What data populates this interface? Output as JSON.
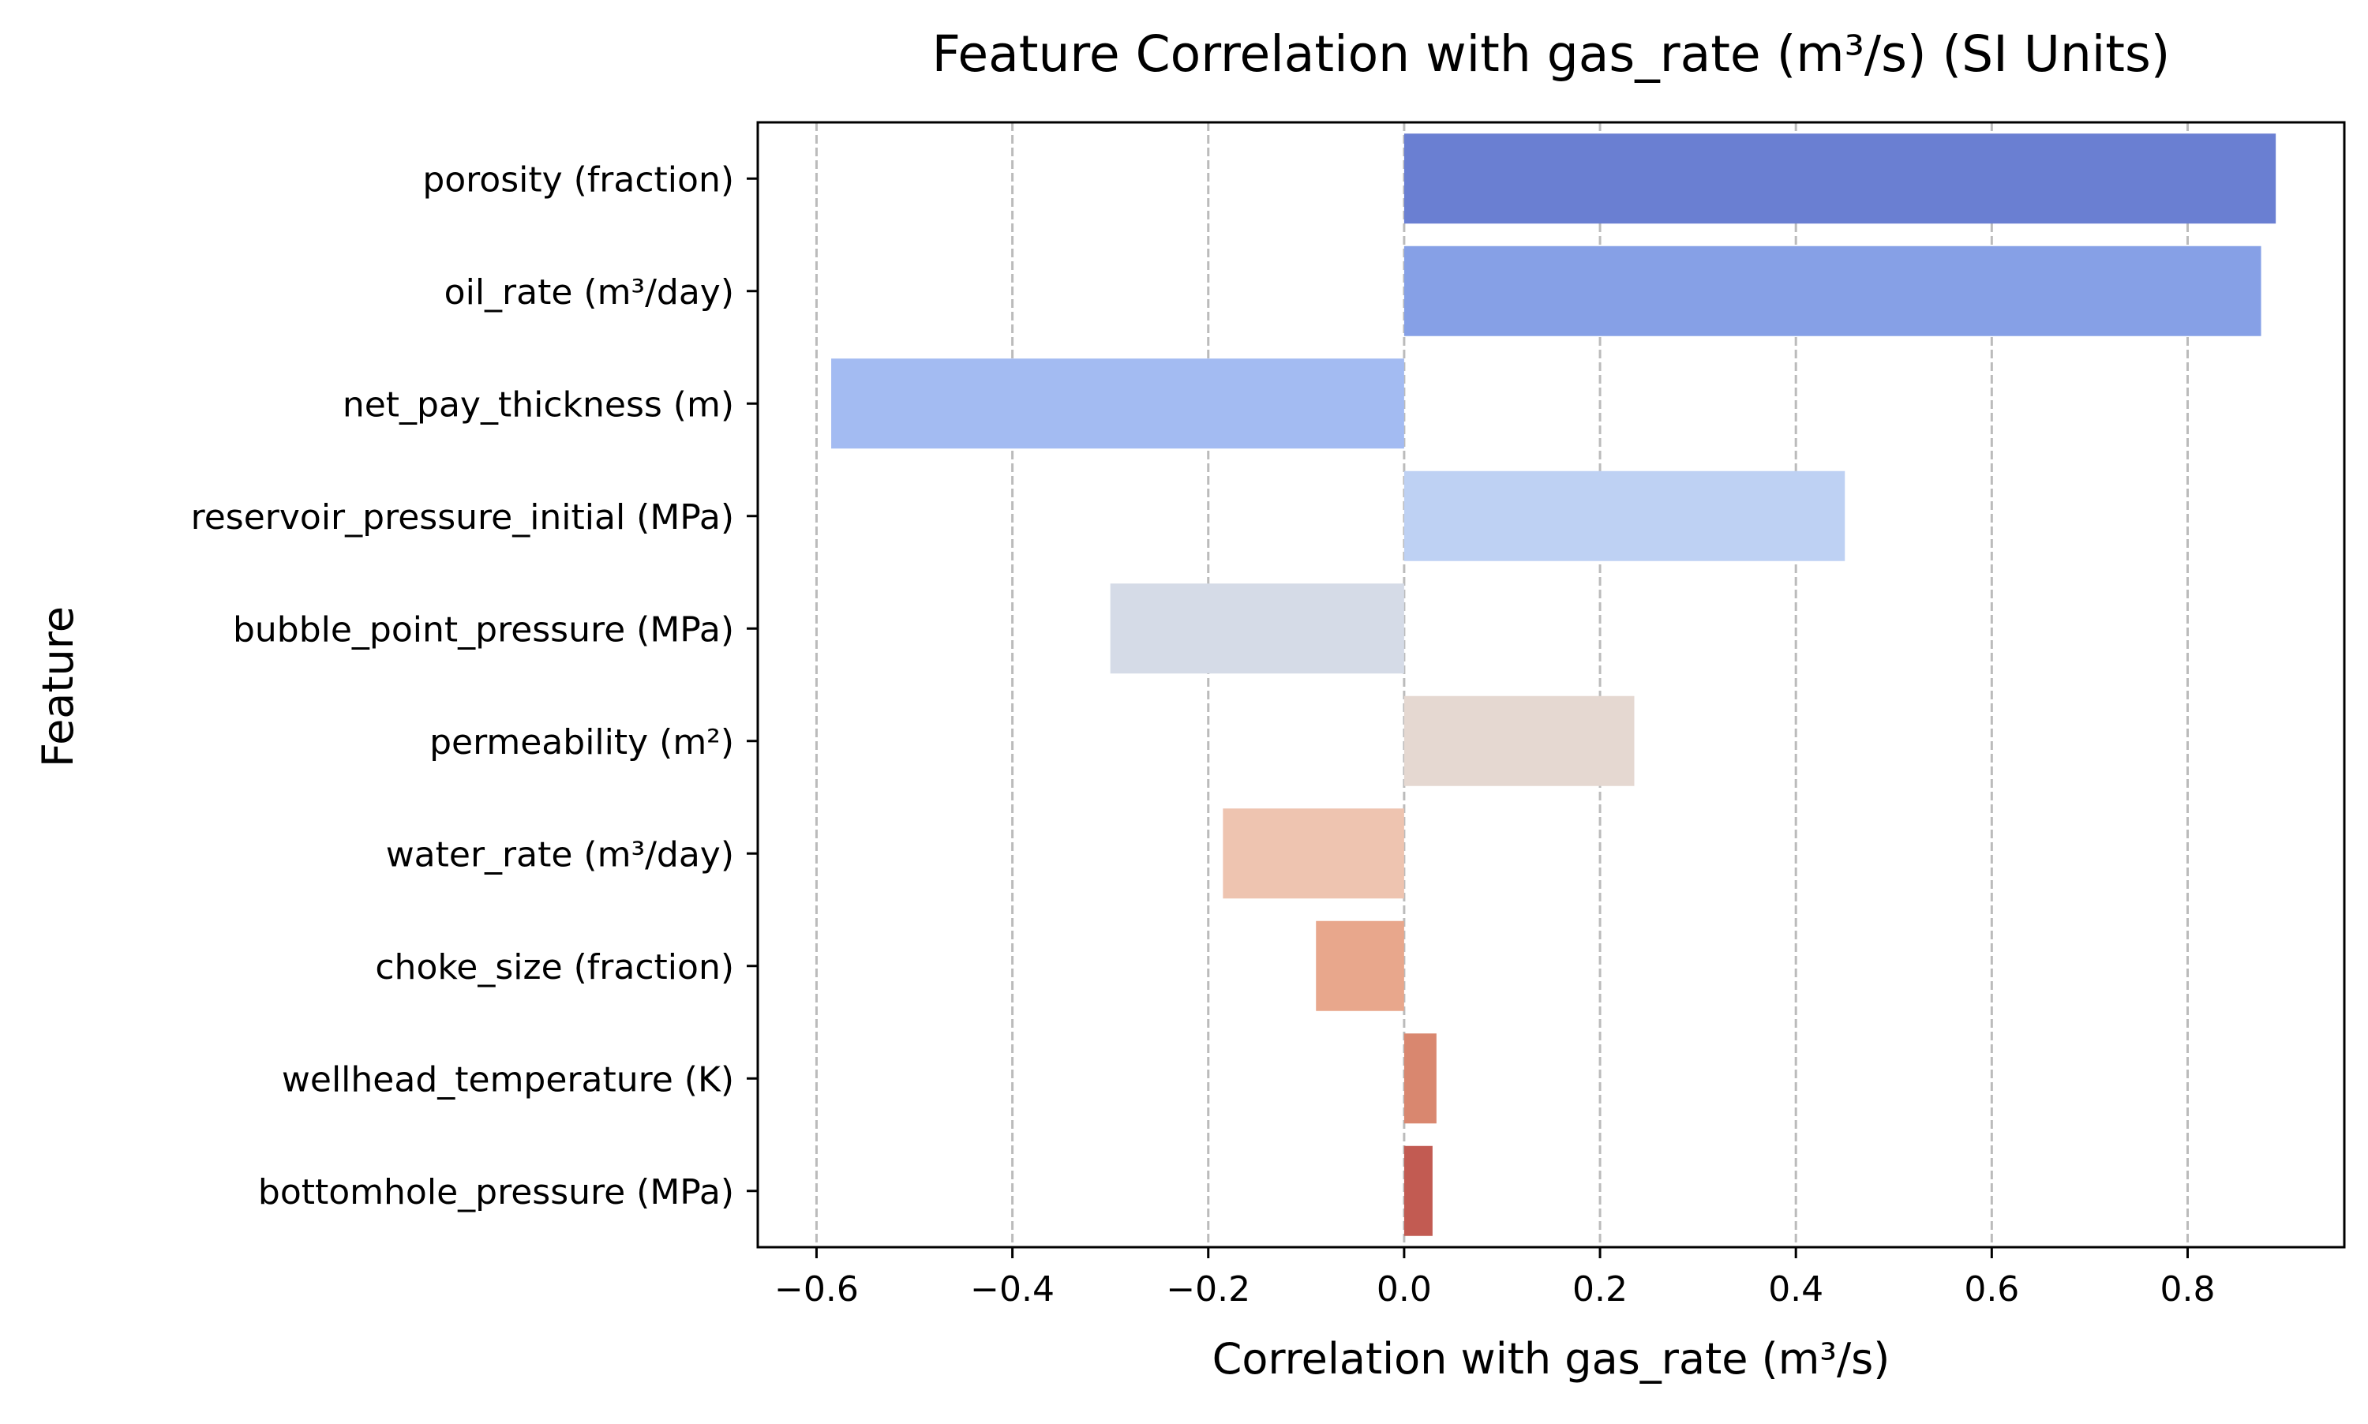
{
  "chart_data": {
    "type": "bar",
    "orientation": "horizontal",
    "title": "Feature Correlation with gas_rate (m³/s) (SI Units)",
    "xlabel": "Correlation with gas_rate (m³/s)",
    "ylabel": "Feature",
    "xlim": [
      -0.66,
      0.96
    ],
    "xticks": [
      -0.6,
      -0.4,
      -0.2,
      0.0,
      0.2,
      0.4,
      0.6,
      0.8
    ],
    "xtick_labels": [
      "−0.6",
      "−0.4",
      "−0.2",
      "0.0",
      "0.2",
      "0.4",
      "0.6",
      "0.8"
    ],
    "grid": "x-axis dashed",
    "legend": "none",
    "categories": [
      "porosity (fraction)",
      "oil_rate (m³/day)",
      "net_pay_thickness (m)",
      "reservoir_pressure_initial (MPa)",
      "bubble_point_pressure (MPa)",
      "permeability (m²)",
      "water_rate (m³/day)",
      "choke_size (fraction)",
      "wellhead_temperature (K)",
      "bottomhole_pressure (MPa)"
    ],
    "values": [
      0.89,
      0.875,
      -0.585,
      0.45,
      -0.3,
      0.235,
      -0.185,
      -0.09,
      0.033,
      0.029
    ],
    "colors": [
      "#6a7fd2",
      "#86a0e6",
      "#a3bbf2",
      "#bed1f3",
      "#d5dbe7",
      "#e5d8d1",
      "#eec4b0",
      "#e8a78c",
      "#d9876f",
      "#c25b52"
    ]
  }
}
